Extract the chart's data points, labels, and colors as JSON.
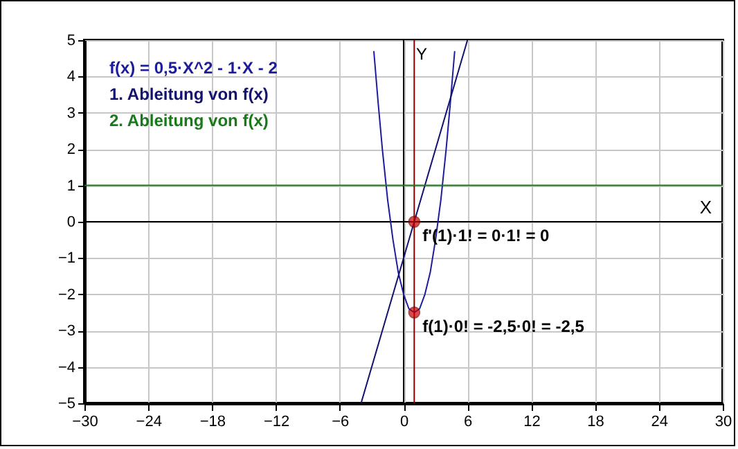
{
  "chart_data": {
    "type": "line",
    "xlabel": "X",
    "ylabel": "Y",
    "legend": "top left",
    "grid": true,
    "xlim": [
      -30,
      30
    ],
    "ylim": [
      -5,
      5
    ],
    "xticks": [
      -30,
      -24,
      -18,
      -12,
      -6,
      0,
      6,
      12,
      18,
      24,
      30
    ],
    "yticks": [
      -5,
      -4,
      -3,
      -2,
      -1,
      0,
      1,
      2,
      3,
      4,
      5
    ],
    "series": [
      {
        "name": "f(x) = 0,5·X^2 - 1·X - 2",
        "color": "#1c1c9c",
        "x": [
          -2.8,
          -2.4,
          -2,
          -1.5,
          -1,
          -0.5,
          0,
          0.5,
          1,
          1.5,
          2,
          2.5,
          3,
          3.5,
          4,
          4.4,
          4.8
        ],
        "values": [
          4.7,
          3.3,
          2,
          0.6,
          -0.5,
          -1.4,
          -2,
          -2.4,
          -2.5,
          -2.4,
          -2,
          -1.4,
          -0.5,
          0.6,
          2,
          3.3,
          4.7
        ]
      },
      {
        "name": "1. Ableitung von f(x)",
        "color": "#12126e",
        "x": [
          -4,
          6
        ],
        "values": [
          -5,
          5
        ]
      },
      {
        "name": "2. Ableitung von f(x)",
        "color": "#1a7a1a",
        "x": [
          -30,
          30
        ],
        "values": [
          1,
          1
        ]
      },
      {
        "type": "scatter",
        "color": "#cc0000",
        "marker": "circle",
        "x": [
          1,
          1
        ],
        "values": [
          0,
          -2.5
        ]
      }
    ],
    "ref_lines": [
      {
        "axis": "x",
        "value": 1,
        "color": "#800000"
      }
    ],
    "annotations": [
      {
        "text": "f'(1)·1! = 0·1! = 0",
        "x": 1,
        "y": 0
      },
      {
        "text": "f(1)·0! = -2,5·0! = -2,5",
        "x": 1,
        "y": -2.5
      }
    ]
  }
}
